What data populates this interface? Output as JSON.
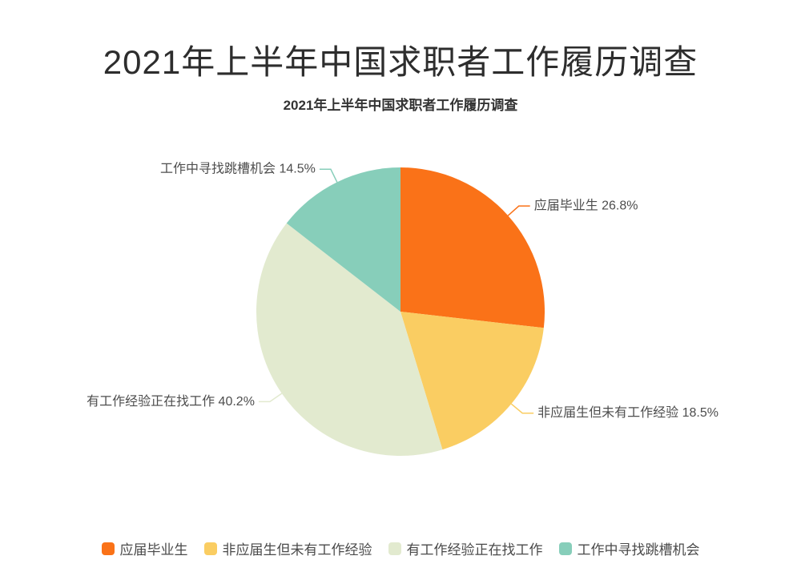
{
  "page": {
    "title": "2021年上半年中国求职者工作履历调查"
  },
  "chart_data": {
    "type": "pie",
    "title": "2021年上半年中国求职者工作履历调查",
    "subtitle": "2021年上半年中国求职者工作履历调查",
    "label_format": "{name} {value}%",
    "direction": "clockwise",
    "start_angle_deg": 0,
    "legend_position": "bottom",
    "label_color": "#4d4d4d",
    "background_color": "#ffffff",
    "items": [
      {
        "label": "应届毕业生",
        "value": 26.8,
        "color": "#FA7218"
      },
      {
        "label": "非应届生但未有工作经验",
        "value": 18.5,
        "color": "#FACD62"
      },
      {
        "label": "有工作经验正在找工作",
        "value": 40.2,
        "color": "#E2EACF"
      },
      {
        "label": "工作中寻找跳槽机会",
        "value": 14.5,
        "color": "#87CEBA"
      }
    ]
  }
}
